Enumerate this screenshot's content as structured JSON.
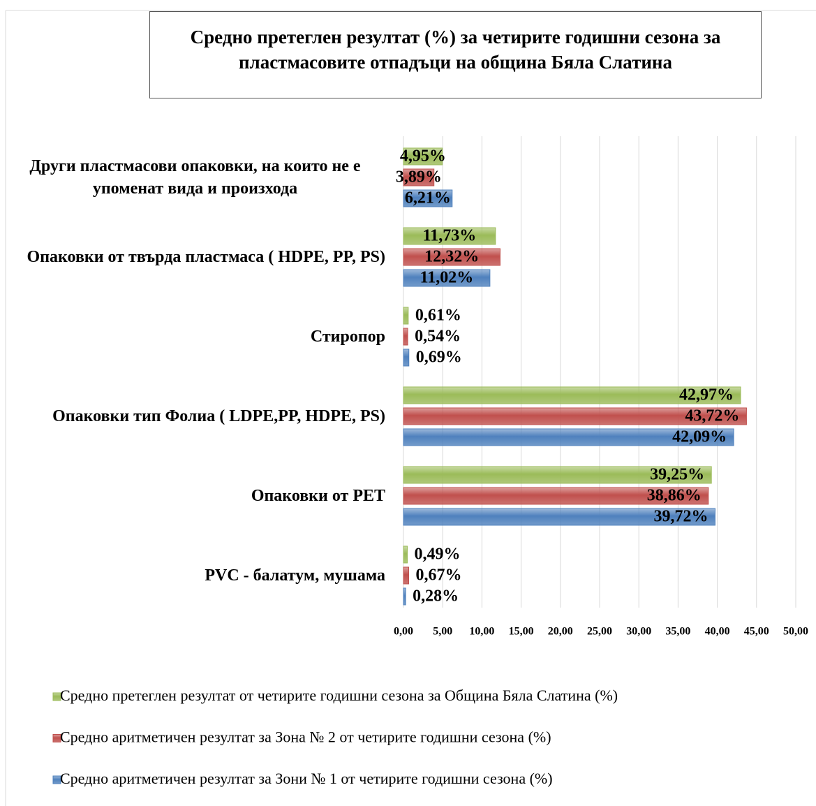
{
  "chart_data": {
    "type": "bar",
    "orientation": "horizontal",
    "title": "Средно претеглен резултат (%) за четирите годишни сезона за пластмасовите отпадъци на община Бяла Слатина",
    "categories": [
      "Други пластмасови опаковки, на които не е упоменат вида и произхода",
      "Опаковки от твърда пластмаса ( HDPE, PP, PS)",
      "Стиропор",
      "Опаковки тип Фолиа ( LDPE,PP, HDPE, PS)",
      "Опаковки от PET",
      "PVC - балатум, мушама"
    ],
    "series": [
      {
        "name": "Средно претеглен резултат от четирите годишни сезона за Община Бяла Слатина (%)",
        "color": "#9bbb59",
        "values": [
          4.95,
          11.73,
          0.61,
          42.97,
          39.25,
          0.49
        ],
        "value_labels": [
          "4,95%",
          "11,73%",
          "0,61%",
          "42,97%",
          "39,25%",
          "0,49%"
        ]
      },
      {
        "name": "Средно аритметичен резултат за Зона № 2 от четирите годишни сезона (%)",
        "color": "#c0504d",
        "values": [
          3.89,
          12.32,
          0.54,
          43.72,
          38.86,
          0.67
        ],
        "value_labels": [
          "3,89%",
          "12,32%",
          "0,54%",
          "43,72%",
          "38,86%",
          "0,67%"
        ]
      },
      {
        "name": "Средно аритметичен резултат за Зони № 1 от четирите годишни сезона (%)",
        "color": "#4f81bd",
        "values": [
          6.21,
          11.02,
          0.69,
          42.09,
          39.72,
          0.28
        ],
        "value_labels": [
          "6,21%",
          "11,02%",
          "0,69%",
          "42,09%",
          "39,72%",
          "0,28%"
        ]
      }
    ],
    "xlim": [
      0,
      50
    ],
    "xticks": [
      {
        "value": 0,
        "label": "0,00"
      },
      {
        "value": 5,
        "label": "5,00"
      },
      {
        "value": 10,
        "label": "10,00"
      },
      {
        "value": 15,
        "label": "15,00"
      },
      {
        "value": 20,
        "label": "20,00"
      },
      {
        "value": 25,
        "label": "25,00"
      },
      {
        "value": 30,
        "label": "30,00"
      },
      {
        "value": 35,
        "label": "35,00"
      },
      {
        "value": 40,
        "label": "40,00"
      },
      {
        "value": 45,
        "label": "45,00"
      },
      {
        "value": 50,
        "label": "50,00"
      }
    ],
    "grid": true,
    "legend": "bottom"
  }
}
